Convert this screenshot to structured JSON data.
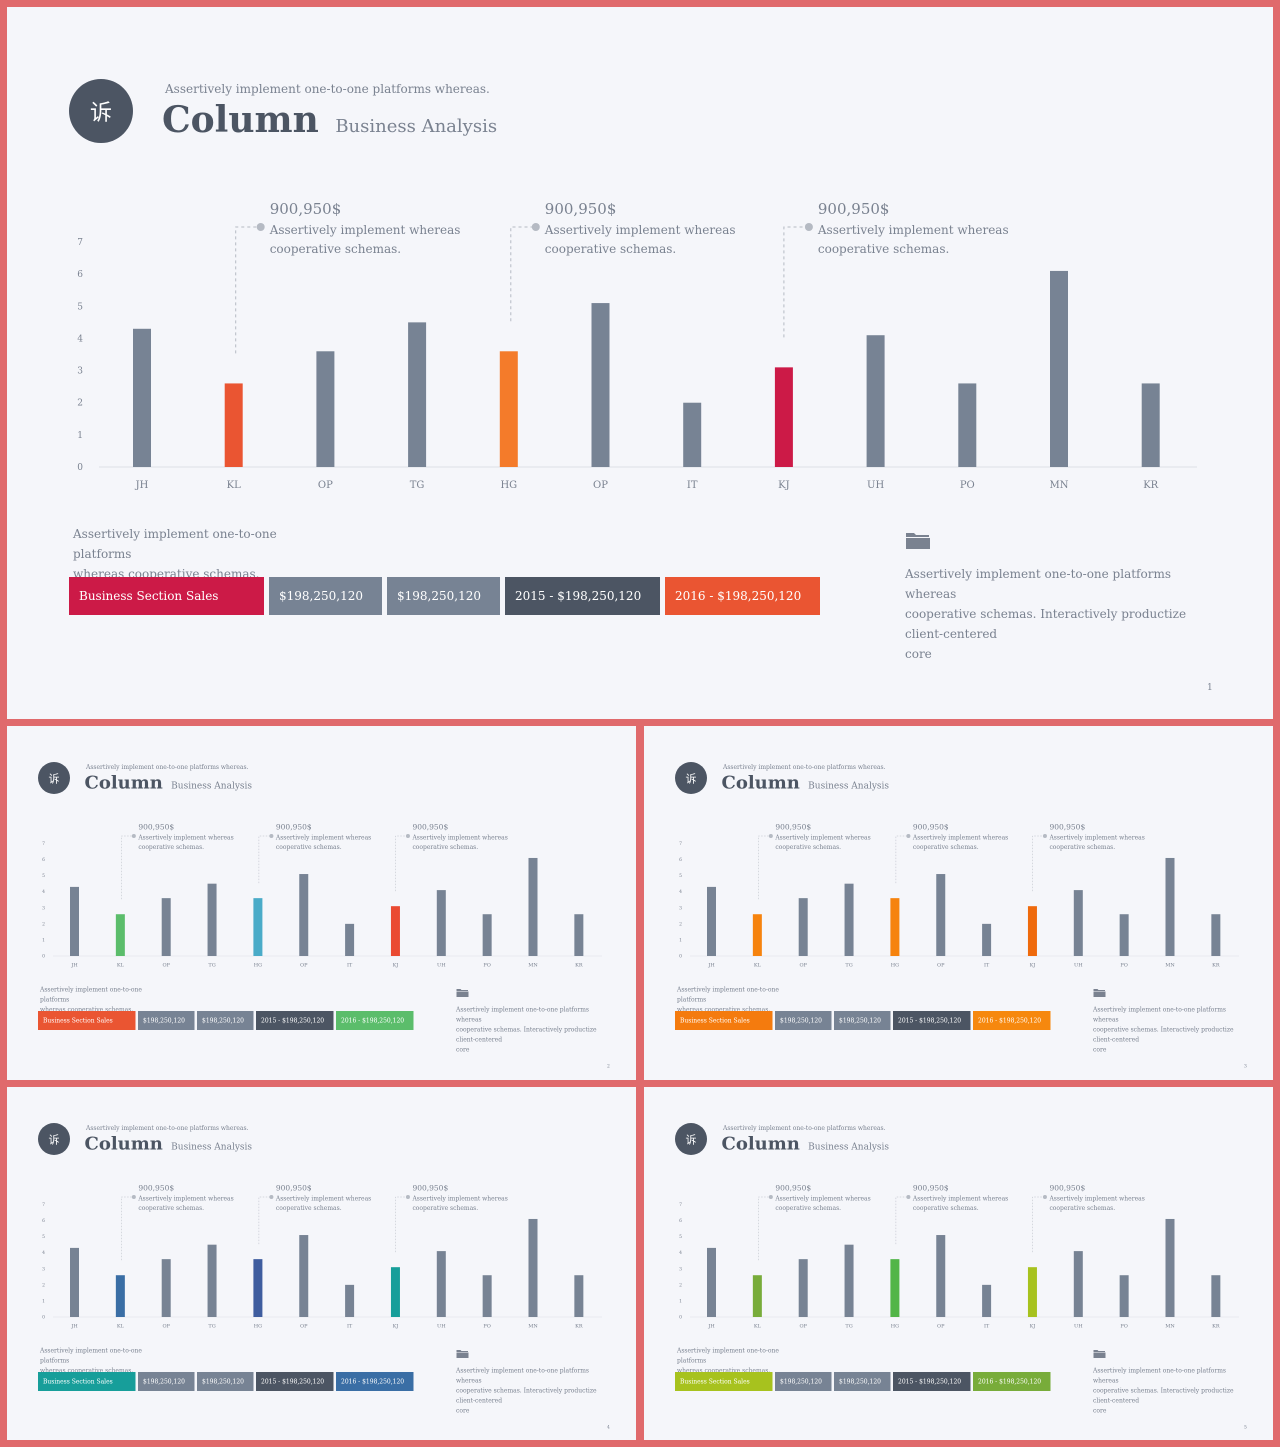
{
  "header": {
    "logo_glyph": "诉",
    "subtitle": "Assertively implement one-to-one platforms whereas.",
    "title": "Column",
    "title_sub": "Business Analysis"
  },
  "chart_data": {
    "type": "bar",
    "categories": [
      "JH",
      "KL",
      "OP",
      "TG",
      "HG",
      "OP",
      "IT",
      "KJ",
      "UH",
      "PO",
      "MN",
      "KR"
    ],
    "values": [
      4.3,
      2.6,
      3.6,
      4.5,
      3.6,
      5.1,
      2.0,
      3.1,
      4.1,
      2.6,
      6.1,
      2.6
    ],
    "ylim": [
      0,
      7
    ],
    "yticks": [
      0,
      1,
      2,
      3,
      4,
      5,
      6,
      7
    ],
    "bar_color_default": "#778394",
    "annotations": [
      {
        "value": "900,950$",
        "text": [
          "Assertively implement whereas",
          "cooperative schemas."
        ],
        "category_index": 1
      },
      {
        "value": "900,950$",
        "text": [
          "Assertively implement whereas",
          "cooperative schemas."
        ],
        "category_index": 4
      },
      {
        "value": "900,950$",
        "text": [
          "Assertively implement whereas",
          "cooperative schemas."
        ],
        "category_index": 7
      }
    ]
  },
  "desc_left": [
    "Assertively implement one-to-one platforms",
    "whereas cooperative schemas."
  ],
  "legend": {
    "items": [
      {
        "label": "Business Section Sales"
      },
      {
        "label": "$198,250,120"
      },
      {
        "label": "$198,250,120"
      },
      {
        "label": "2015 - $198,250,120"
      },
      {
        "label": "2016 - $198,250,120"
      }
    ]
  },
  "desc_right": [
    "Assertively implement one-to-one platforms whereas",
    "cooperative schemas. Interactively productize client-centered",
    "core"
  ],
  "icons": {
    "logo": "logo-circle",
    "folder": "folder-icon"
  },
  "slides": [
    {
      "page": "1",
      "highlight_colors": [
        "#ea5532",
        "#f47b2a",
        "#cc1a47"
      ],
      "legend_colors": [
        "#cc1a47",
        "#778394",
        "#778394",
        "#4c5563",
        "#ea5532"
      ]
    },
    {
      "page": "2",
      "highlight_colors": [
        "#5bbd6b",
        "#4aabc8",
        "#ea4a32"
      ],
      "legend_colors": [
        "#ea5532",
        "#778394",
        "#778394",
        "#4c5563",
        "#5bbd6b"
      ]
    },
    {
      "page": "3",
      "highlight_colors": [
        "#f6830e",
        "#f6830e",
        "#ef6a0c"
      ],
      "legend_colors": [
        "#f47b0e",
        "#778394",
        "#778394",
        "#4c5563",
        "#f6880e"
      ]
    },
    {
      "page": "4",
      "highlight_colors": [
        "#3a6ea5",
        "#3f5d9f",
        "#179e9a"
      ],
      "legend_colors": [
        "#179e9a",
        "#778394",
        "#778394",
        "#4c5563",
        "#3a6ea5"
      ]
    },
    {
      "page": "5",
      "highlight_colors": [
        "#78ac3a",
        "#52b548",
        "#a7c21e"
      ],
      "legend_colors": [
        "#a7c21e",
        "#778394",
        "#778394",
        "#4c5563",
        "#78ac3a"
      ]
    }
  ]
}
